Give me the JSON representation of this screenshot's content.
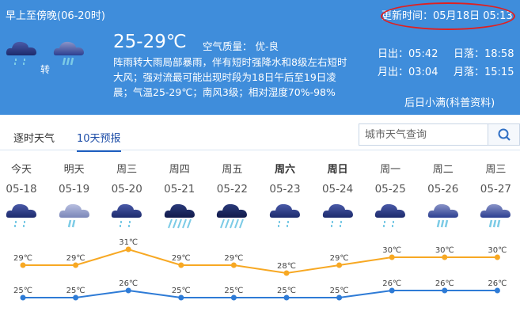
{
  "header": {
    "period": "早上至傍晚(06-20时)",
    "temp": "25-29℃",
    "air_quality": "空气质量： 优-良",
    "transition": "转",
    "icon_from": "shower",
    "icon_to": "moderate-rain",
    "description": "阵雨转大雨局部暴雨，伴有短时强降水和8级左右短时大风；强对流最可能出现时段为18日午后至19日凌晨；气温25-29℃；南风3级；相对湿度70%-98%",
    "updated": "更新时间：05月18日 05:13",
    "sunrise": "日出：05:42",
    "sunset": "日落：18:58",
    "moonrise": "月出：03:04",
    "moonset": "月落：15:15",
    "solar_term": "后日小满(科普资料)",
    "bg_color": "#3f8ddb"
  },
  "tabs": [
    {
      "label": "逐时天气",
      "active": false
    },
    {
      "label": "10天预报",
      "active": true
    }
  ],
  "search": {
    "placeholder": "城市天气查询",
    "icon": "search-icon"
  },
  "days": [
    {
      "week": "今天",
      "date": "05-18",
      "icon": "shower",
      "bold": false
    },
    {
      "week": "明天",
      "date": "05-19",
      "icon": "light-rain",
      "bold": false
    },
    {
      "week": "周三",
      "date": "05-20",
      "icon": "shower",
      "bold": false
    },
    {
      "week": "周四",
      "date": "05-21",
      "icon": "heavy-rain",
      "bold": false
    },
    {
      "week": "周五",
      "date": "05-22",
      "icon": "heavy-rain",
      "bold": false
    },
    {
      "week": "周六",
      "date": "05-23",
      "icon": "shower",
      "bold": true
    },
    {
      "week": "周日",
      "date": "05-24",
      "icon": "shower",
      "bold": true
    },
    {
      "week": "周一",
      "date": "05-25",
      "icon": "shower",
      "bold": false
    },
    {
      "week": "周二",
      "date": "05-26",
      "icon": "moderate-rain",
      "bold": false
    },
    {
      "week": "周三",
      "date": "05-27",
      "icon": "moderate-rain",
      "bold": false
    }
  ],
  "chart_data": {
    "type": "line",
    "categories": [
      "05-18",
      "05-19",
      "05-20",
      "05-21",
      "05-22",
      "05-23",
      "05-24",
      "05-25",
      "05-26",
      "05-27"
    ],
    "unit": "℃",
    "series": [
      {
        "values": [
          29,
          29,
          31,
          29,
          29,
          28,
          29,
          30,
          30,
          30
        ],
        "color": "#f7a823"
      },
      {
        "values": [
          25,
          25,
          26,
          25,
          25,
          25,
          25,
          26,
          26,
          26
        ],
        "color": "#2e7bd6"
      }
    ]
  }
}
